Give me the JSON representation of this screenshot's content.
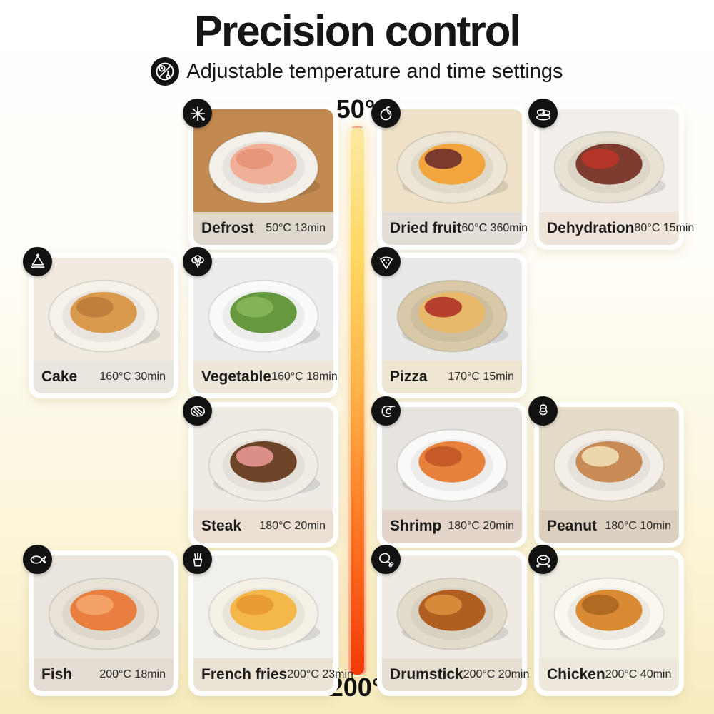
{
  "header": {
    "title": "Precision control",
    "subtitle": "Adjustable temperature and time settings",
    "subtitle_icon": "temp-time-icon"
  },
  "scale": {
    "top_label": "50°",
    "bottom_label": "200°",
    "gradient": [
      "#FBE9A2",
      "#FFD763",
      "#FFB24A",
      "#FF7B26",
      "#F23A08"
    ]
  },
  "cards": [
    {
      "name": "Defrost",
      "temp_time": "50°C 13min",
      "icon": "snowflake-icon",
      "col": 1,
      "row": 0,
      "caption_bg": "#DFD8CC",
      "photo": {
        "bg": "#C28A50",
        "plate": "#F3F0EA",
        "food": "#F0B098",
        "food2": "#E7957B"
      }
    },
    {
      "name": "Dried fruit",
      "temp_time": "60°C 360min",
      "icon": "dried-fruit-icon",
      "col": 2,
      "row": 0,
      "caption_bg": "#E2DDD6",
      "photo": {
        "bg": "#EFE1C8",
        "plate": "#EDE5D5",
        "food": "#F2A53C",
        "food2": "#7A3B2E"
      }
    },
    {
      "name": "Dehydration",
      "temp_time": "80°C 15min",
      "icon": "jerky-icon",
      "col": 3,
      "row": 0,
      "caption_bg": "#EFE4DA",
      "photo": {
        "bg": "#F2EFEA",
        "plate": "#E8E2D4",
        "food": "#7E3B30",
        "food2": "#B43527"
      }
    },
    {
      "name": "Cake",
      "temp_time": "160°C 30min",
      "icon": "cake-icon",
      "col": 0,
      "row": 1,
      "caption_bg": "#EAE4DE",
      "photo": {
        "bg": "#F0EAE1",
        "plate": "#F6F2EA",
        "food": "#D99A4E",
        "food2": "#C07F3D"
      }
    },
    {
      "name": "Vegetable",
      "temp_time": "160°C 18min",
      "icon": "broccoli-icon",
      "col": 1,
      "row": 1,
      "caption_bg": "#EFE6DA",
      "photo": {
        "bg": "#EDEDEB",
        "plate": "#FAFAF8",
        "food": "#669840",
        "food2": "#84B254"
      }
    },
    {
      "name": "Pizza",
      "temp_time": "170°C 15min",
      "icon": "pizza-icon",
      "col": 2,
      "row": 1,
      "caption_bg": "#EDE5D2",
      "photo": {
        "bg": "#E9E9E7",
        "plate": "#D9C9A8",
        "food": "#E8B96B",
        "food2": "#B5402E"
      }
    },
    {
      "name": "Steak",
      "temp_time": "180°C 20min",
      "icon": "steak-icon",
      "col": 1,
      "row": 2,
      "caption_bg": "#EADFD2",
      "photo": {
        "bg": "#EEEBE5",
        "plate": "#F1EDE4",
        "food": "#6E4428",
        "food2": "#DB8E88"
      }
    },
    {
      "name": "Shrimp",
      "temp_time": "180°C 20min",
      "icon": "shrimp-icon",
      "col": 2,
      "row": 2,
      "caption_bg": "#E3D5C9",
      "photo": {
        "bg": "#E7E4E0",
        "plate": "#FAF9F7",
        "food": "#E8813C",
        "food2": "#C65A28"
      }
    },
    {
      "name": "Peanut",
      "temp_time": "180°C 10min",
      "icon": "peanut-icon",
      "col": 3,
      "row": 2,
      "caption_bg": "#DBD0C0",
      "photo": {
        "bg": "#E5DBC9",
        "plate": "#F3EFE7",
        "food": "#C98B56",
        "food2": "#EBD5AA"
      }
    },
    {
      "name": "Fish",
      "temp_time": "200°C 18min",
      "icon": "fish-icon",
      "col": 0,
      "row": 3,
      "caption_bg": "#E4DCD2",
      "photo": {
        "bg": "#EAE5DD",
        "plate": "#E9E3D7",
        "food": "#E87F3F",
        "food2": "#F4A268"
      }
    },
    {
      "name": "French fries",
      "temp_time": "200°C 23min",
      "icon": "fries-icon",
      "col": 1,
      "row": 3,
      "caption_bg": "#EBE3D6",
      "photo": {
        "bg": "#F2F0EC",
        "plate": "#F6F1E6",
        "food": "#F4B84A",
        "food2": "#E89C33"
      }
    },
    {
      "name": "Drumstick",
      "temp_time": "200°C 20min",
      "icon": "drumstick-icon",
      "col": 2,
      "row": 3,
      "caption_bg": "#E8DFD3",
      "photo": {
        "bg": "#EFEAE2",
        "plate": "#E4DCCB",
        "food": "#B05E22",
        "food2": "#D88A3A"
      }
    },
    {
      "name": "Chicken",
      "temp_time": "200°C 40min",
      "icon": "chicken-icon",
      "col": 3,
      "row": 3,
      "caption_bg": "#EFE9DD",
      "photo": {
        "bg": "#F3EEE4",
        "plate": "#FAF7F1",
        "food": "#D98A33",
        "food2": "#B06A22"
      }
    }
  ]
}
